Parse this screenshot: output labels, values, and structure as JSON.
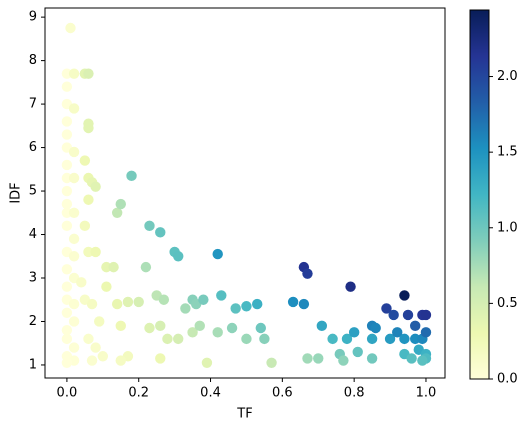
{
  "chart_data": {
    "type": "scatter",
    "xlabel": "TF",
    "ylabel": "IDF",
    "x": [
      0.01,
      0,
      0.02,
      0,
      0,
      0.02,
      0,
      0,
      0,
      0.02,
      0,
      0,
      0.02,
      0,
      0,
      0,
      0.02,
      0,
      0.02,
      0,
      0.02,
      0,
      0.02,
      0,
      0,
      0.02,
      0,
      0.02,
      0,
      0,
      0.02,
      0,
      0.02,
      0,
      0.05,
      0.06,
      0.06,
      0.06,
      0.05,
      0.06,
      0.07,
      0.08,
      0.06,
      0.05,
      0.06,
      0.08,
      0.04,
      0.05,
      0.07,
      0.09,
      0.06,
      0.08,
      0.07,
      0.1,
      0.11,
      0.11,
      0.13,
      0.14,
      0.15,
      0.14,
      0.15,
      0.17,
      0.18,
      0.2,
      0.17,
      0.15,
      0.22,
      0.23,
      0.23,
      0.26,
      0.25,
      0.26,
      0.27,
      0.28,
      0.26,
      0.3,
      0.31,
      0.31,
      0.33,
      0.35,
      0.36,
      0.35,
      0.37,
      0.38,
      0.39,
      0.42,
      0.42,
      0.43,
      0.46,
      0.47,
      0.5,
      0.5,
      0.53,
      0.54,
      0.55,
      0.57,
      0.63,
      0.66,
      0.66,
      0.67,
      0.67,
      0.7,
      0.71,
      0.74,
      0.76,
      0.77,
      0.78,
      0.79,
      0.8,
      0.81,
      0.85,
      0.86,
      0.85,
      0.85,
      0.89,
      0.9,
      0.91,
      0.92,
      0.94,
      0.94,
      0.95,
      0.94,
      0.97,
      0.97,
      0.96,
      0.99,
      1.0,
      0.99,
      1.0,
      0.98,
      1.0,
      1.0,
      0.99
    ],
    "values": [
      8.75,
      7.7,
      7.7,
      7.4,
      7.0,
      6.9,
      6.6,
      6.3,
      6.0,
      5.9,
      5.6,
      5.3,
      5.3,
      5.0,
      4.7,
      4.5,
      4.5,
      4.2,
      3.9,
      3.6,
      3.5,
      3.2,
      3.0,
      2.8,
      2.5,
      2.4,
      2.2,
      2.0,
      1.8,
      1.6,
      1.4,
      1.2,
      1.1,
      1.05,
      7.7,
      7.7,
      6.55,
      6.45,
      5.7,
      5.3,
      5.2,
      5.1,
      4.8,
      4.2,
      3.6,
      3.6,
      2.9,
      2.5,
      2.4,
      2.0,
      1.6,
      1.4,
      1.1,
      1.2,
      2.8,
      3.25,
      3.25,
      4.5,
      4.7,
      2.4,
      1.9,
      2.45,
      5.35,
      2.45,
      1.2,
      1.1,
      3.25,
      4.2,
      1.85,
      4.05,
      2.6,
      1.9,
      2.5,
      1.6,
      1.15,
      3.6,
      3.5,
      1.6,
      2.3,
      2.5,
      2.4,
      1.75,
      1.9,
      2.5,
      1.05,
      1.75,
      3.55,
      2.6,
      1.85,
      2.3,
      2.35,
      1.6,
      2.4,
      1.85,
      1.6,
      1.05,
      2.45,
      2.4,
      3.25,
      3.1,
      1.15,
      1.15,
      1.9,
      1.6,
      1.25,
      1.1,
      1.6,
      2.8,
      1.75,
      1.3,
      1.9,
      1.85,
      1.6,
      1.15,
      2.3,
      1.6,
      2.15,
      1.75,
      2.6,
      1.25,
      2.15,
      1.6,
      1.9,
      1.6,
      1.15,
      2.15,
      2.15,
      1.6,
      1.75,
      1.35,
      1.25,
      1.15,
      1.1
    ],
    "c": [
      0.09,
      0,
      0.15,
      0,
      0,
      0.14,
      0,
      0,
      0,
      0.12,
      0,
      0,
      0.11,
      0,
      0,
      0,
      0.09,
      0,
      0.08,
      0,
      0.07,
      0,
      0.06,
      0,
      0,
      0.05,
      0,
      0.04,
      0,
      0,
      0.03,
      0,
      0.02,
      0,
      0.39,
      0.46,
      0.39,
      0.39,
      0.29,
      0.32,
      0.36,
      0.41,
      0.29,
      0.21,
      0.22,
      0.29,
      0.12,
      0.13,
      0.17,
      0.18,
      0.1,
      0.11,
      0.08,
      0.12,
      0.31,
      0.36,
      0.42,
      0.63,
      0.71,
      0.34,
      0.29,
      0.42,
      0.96,
      0.49,
      0.2,
      0.17,
      0.72,
      0.97,
      0.43,
      1.05,
      0.65,
      0.49,
      0.68,
      0.45,
      0.3,
      1.08,
      1.09,
      0.5,
      0.76,
      0.88,
      0.86,
      0.61,
      0.7,
      0.95,
      0.41,
      0.74,
      1.49,
      1.12,
      0.85,
      1.08,
      1.18,
      0.8,
      1.27,
      1.0,
      0.88,
      0.6,
      1.54,
      1.58,
      2.15,
      2.08,
      0.77,
      0.81,
      1.35,
      1.18,
      0.95,
      0.85,
      1.25,
      2.21,
      1.4,
      1.05,
      1.62,
      1.59,
      1.36,
      0.98,
      2.05,
      1.44,
      1.96,
      1.61,
      2.44,
      1.18,
      2.04,
      1.5,
      1.84,
      1.55,
      1.1,
      2.13,
      2.15,
      1.58,
      1.75,
      1.32,
      1.25,
      1.15,
      1.09
    ],
    "colormap": "YlGnBu",
    "xlim": [
      -0.061,
      1.053
    ],
    "xticks": [
      {
        "value": 0,
        "label": "0.0"
      },
      0.2,
      0.4,
      0.6,
      0.8,
      {
        "value": 1,
        "label": "1.0"
      }
    ],
    "ylim": [
      0.7,
      9.21
    ],
    "yticks": [
      1,
      2,
      3,
      4,
      5,
      6,
      7,
      8,
      9
    ],
    "clim": [
      0,
      2.44
    ],
    "cticks": [
      {
        "value": 0,
        "label": "0.0"
      },
      0.5,
      {
        "value": 1,
        "label": "1.0"
      },
      1.5,
      {
        "value": 2,
        "label": "2.0"
      }
    ]
  }
}
